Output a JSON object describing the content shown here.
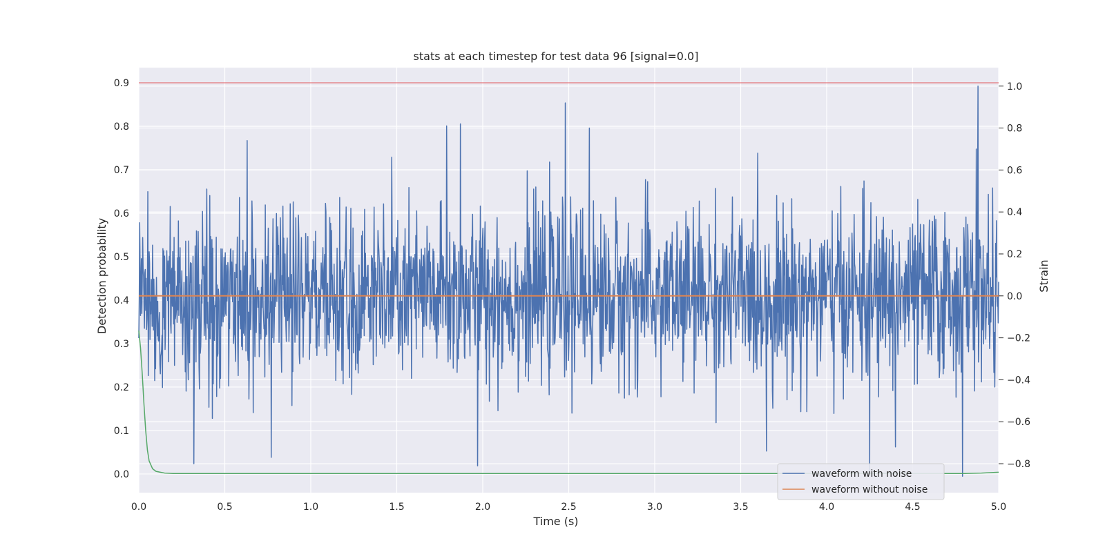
{
  "chart_data": {
    "type": "line",
    "title": "stats at each timestep for test data 96 [signal=0.0]",
    "xlabel": "Time (s)",
    "ylabel": "Detection probability",
    "y2label": "Strain",
    "xlim": [
      0.0,
      5.0
    ],
    "ylim": [
      -0.043,
      0.935
    ],
    "y2lim": [
      -0.938,
      1.088
    ],
    "xticks": [
      "0.0",
      "0.5",
      "1.0",
      "1.5",
      "2.0",
      "2.5",
      "3.0",
      "3.5",
      "4.0",
      "4.5",
      "5.0"
    ],
    "xtick_values": [
      0,
      0.5,
      1,
      1.5,
      2,
      2.5,
      3,
      3.5,
      4,
      4.5,
      5
    ],
    "yticks": [
      "0.0",
      "0.1",
      "0.2",
      "0.3",
      "0.4",
      "0.5",
      "0.6",
      "0.7",
      "0.8",
      "0.9"
    ],
    "ytick_values": [
      0,
      0.1,
      0.2,
      0.3,
      0.4,
      0.5,
      0.6,
      0.7,
      0.8,
      0.9
    ],
    "y2ticks": [
      "−0.8",
      "−0.6",
      "−0.4",
      "−0.2",
      "0.0",
      "0.2",
      "0.4",
      "0.6",
      "0.8",
      "1.0"
    ],
    "y2tick_values": [
      -0.8,
      -0.6,
      -0.4,
      -0.2,
      0.0,
      0.2,
      0.4,
      0.6,
      0.8,
      1.0
    ],
    "grid": true,
    "legend_position": "lower-right",
    "threshold": {
      "value": 0.9,
      "axis": "left",
      "color": "#dd8452"
    },
    "series": [
      {
        "name": "waveform with noise",
        "axis": "right",
        "color": "#4c72b0",
        "line_width": 1.5,
        "noise": {
          "mean": 0.0,
          "sd": 0.2,
          "n": 2000
        },
        "notable_peaks": [
          {
            "x": 4.88,
            "y": 1.0
          },
          {
            "x": 2.48,
            "y": 0.92
          },
          {
            "x": 1.87,
            "y": 0.82
          },
          {
            "x": 1.79,
            "y": 0.81
          },
          {
            "x": 2.62,
            "y": 0.8
          },
          {
            "x": 4.87,
            "y": 0.7
          },
          {
            "x": 0.63,
            "y": 0.74
          }
        ],
        "notable_troughs": [
          {
            "x": 0.32,
            "y": -0.8
          },
          {
            "x": 0.77,
            "y": -0.77
          },
          {
            "x": 1.97,
            "y": -0.81
          },
          {
            "x": 3.65,
            "y": -0.74
          },
          {
            "x": 4.25,
            "y": -0.84
          },
          {
            "x": 4.4,
            "y": -0.72
          },
          {
            "x": 4.79,
            "y": -0.86
          }
        ]
      },
      {
        "name": "waveform without noise",
        "axis": "right",
        "color": "#dd8452",
        "line_width": 2,
        "x": [
          0.0,
          5.0
        ],
        "y": [
          0.0,
          0.0
        ]
      },
      {
        "name": "",
        "axis": "left",
        "color": "#55a868",
        "line_width": 1.5,
        "x": [
          0.0,
          0.01,
          0.02,
          0.03,
          0.04,
          0.05,
          0.06,
          0.08,
          0.1,
          0.15,
          0.2,
          0.5,
          1.0,
          2.0,
          3.0,
          4.0,
          4.8,
          4.9,
          5.0
        ],
        "y": [
          0.33,
          0.29,
          0.23,
          0.16,
          0.1,
          0.055,
          0.03,
          0.012,
          0.006,
          0.002,
          0.001,
          0.001,
          0.001,
          0.001,
          0.001,
          0.001,
          0.001,
          0.002,
          0.004
        ]
      }
    ]
  }
}
